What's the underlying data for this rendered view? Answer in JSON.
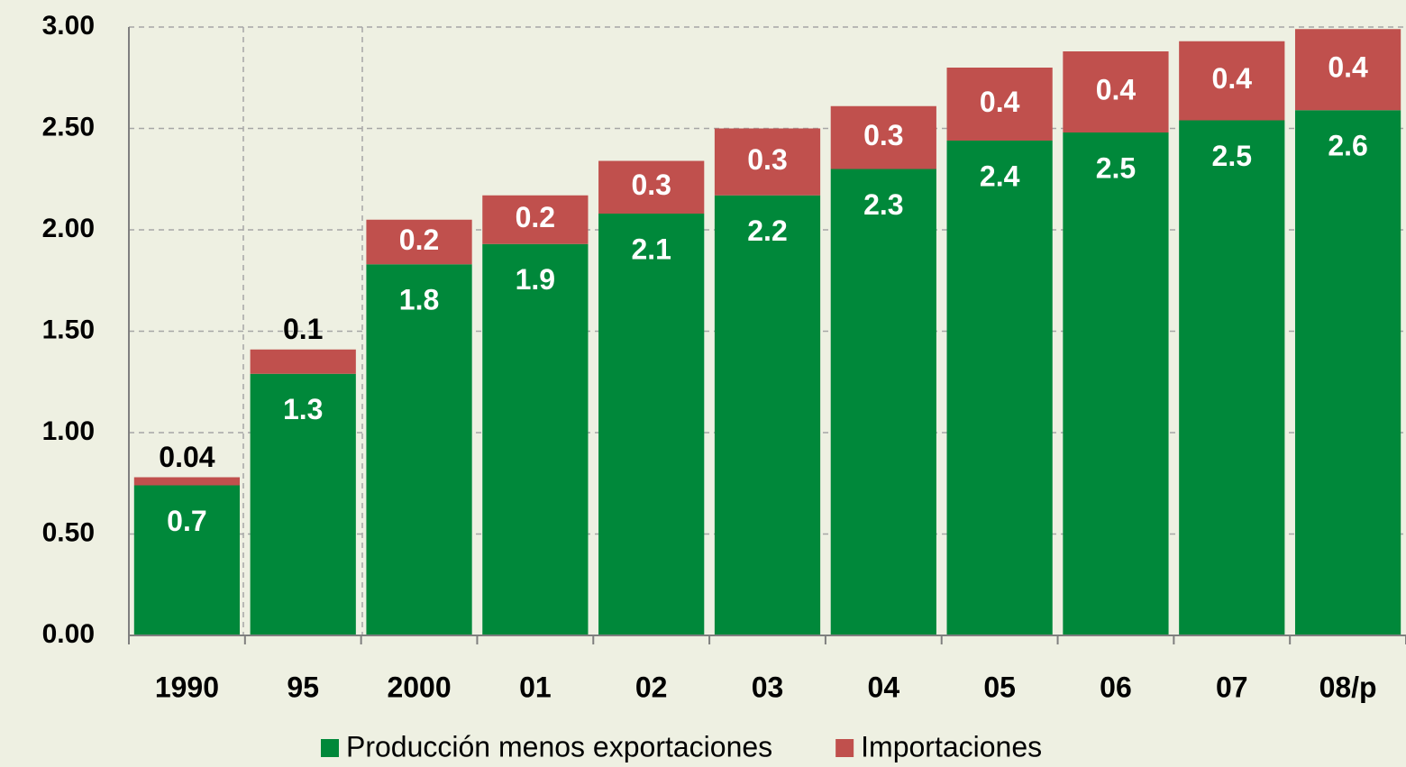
{
  "chart_data": {
    "type": "stacked_bar",
    "categories": [
      "1990",
      "95",
      "2000",
      "01",
      "02",
      "03",
      "04",
      "05",
      "06",
      "07",
      "08/p"
    ],
    "series": [
      {
        "name": "Producción menos exportaciones",
        "color": "#00883a",
        "values": [
          0.74,
          1.29,
          1.83,
          1.93,
          2.08,
          2.17,
          2.3,
          2.44,
          2.48,
          2.54,
          2.59
        ],
        "value_labels": [
          "0.7",
          "1.3",
          "1.8",
          "1.9",
          "2.1",
          "2.2",
          "2.3",
          "2.4",
          "2.5",
          "2.5",
          "2.6"
        ]
      },
      {
        "name": "Importaciones",
        "color": "#c0504d",
        "values": [
          0.04,
          0.12,
          0.22,
          0.24,
          0.26,
          0.33,
          0.31,
          0.36,
          0.4,
          0.39,
          0.4
        ],
        "value_labels": [
          "0.04",
          "0.1",
          "0.2",
          "0.2",
          "0.3",
          "0.3",
          "0.3",
          "0.4",
          "0.4",
          "0.4",
          "0.4"
        ]
      }
    ],
    "ylim": [
      0,
      3
    ],
    "yticks": [
      {
        "value": 0,
        "label": "0.00"
      },
      {
        "value": 0.5,
        "label": "0.50"
      },
      {
        "value": 1,
        "label": "1.00"
      },
      {
        "value": 1.5,
        "label": "1.50"
      },
      {
        "value": 2,
        "label": "2.00"
      },
      {
        "value": 2.5,
        "label": "2.50"
      },
      {
        "value": 3,
        "label": "3.00"
      }
    ],
    "grid": true,
    "legend": "bottom"
  }
}
